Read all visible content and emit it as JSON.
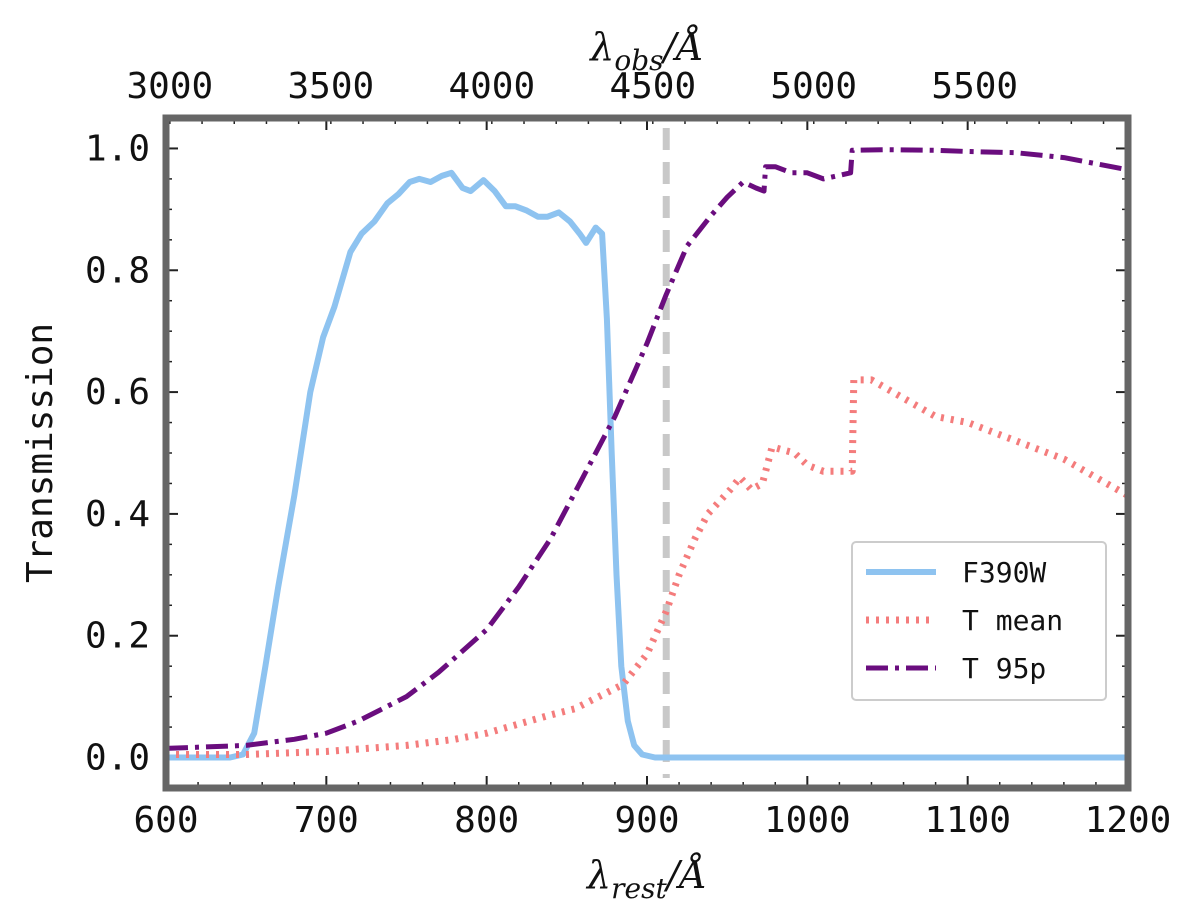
{
  "chart_data": {
    "type": "line",
    "xlabel_bottom": {
      "base": "λ",
      "sub": "rest",
      "unit": "/Å"
    },
    "xlabel_top": {
      "base": "λ",
      "sub": "obs",
      "unit": "/Å"
    },
    "ylabel": "Transmission",
    "xlim": [
      600,
      1200
    ],
    "ylim": [
      -0.05,
      1.05
    ],
    "redshift_factor": 4.98,
    "x_ticks": [
      600,
      700,
      800,
      900,
      1000,
      1100,
      1200
    ],
    "x_tick_labels": [
      "600",
      "700",
      "800",
      "900",
      "1000",
      "1100",
      "1200"
    ],
    "top_ticks_obs": [
      3000,
      3500,
      4000,
      4500,
      5000,
      5500
    ],
    "top_tick_labels": [
      "3000",
      "3500",
      "4000",
      "4500",
      "5000",
      "5500"
    ],
    "y_ticks": [
      0.0,
      0.2,
      0.4,
      0.6,
      0.8,
      1.0
    ],
    "y_tick_labels": [
      "0.0",
      "0.2",
      "0.4",
      "0.6",
      "0.8",
      "1.0"
    ],
    "vline": {
      "x": 912,
      "color": "#c8c8c8"
    },
    "legend_position": "lower-right",
    "series": [
      {
        "name": "F390W",
        "style": "solid",
        "color": "#8ec3f0",
        "x": [
          600,
          640,
          648,
          655,
          662,
          670,
          680,
          690,
          698,
          705,
          715,
          722,
          730,
          738,
          745,
          752,
          758,
          765,
          772,
          778,
          785,
          790,
          798,
          805,
          812,
          818,
          825,
          832,
          838,
          845,
          852,
          858,
          862,
          868,
          872,
          875,
          878,
          881,
          884,
          888,
          892,
          897,
          905,
          920,
          1200
        ],
        "values": [
          0.0,
          0.0,
          0.005,
          0.04,
          0.15,
          0.28,
          0.43,
          0.6,
          0.69,
          0.74,
          0.83,
          0.86,
          0.88,
          0.91,
          0.925,
          0.945,
          0.95,
          0.945,
          0.955,
          0.96,
          0.935,
          0.93,
          0.948,
          0.93,
          0.905,
          0.905,
          0.898,
          0.888,
          0.888,
          0.895,
          0.88,
          0.86,
          0.845,
          0.87,
          0.86,
          0.72,
          0.5,
          0.3,
          0.15,
          0.06,
          0.02,
          0.005,
          0.0,
          0.0,
          0.0
        ]
      },
      {
        "name": "T mean",
        "style": "dotted",
        "color": "#f47c7c",
        "x": [
          600,
          650,
          700,
          750,
          780,
          800,
          820,
          840,
          855,
          870,
          885,
          900,
          912,
          920,
          930,
          938,
          945,
          952,
          958,
          965,
          972,
          978,
          985,
          992,
          1000,
          1010,
          1020,
          1028,
          1029,
          1040,
          1060,
          1080,
          1100,
          1120,
          1140,
          1160,
          1180,
          1200
        ],
        "values": [
          0.005,
          0.005,
          0.01,
          0.02,
          0.03,
          0.04,
          0.055,
          0.07,
          0.08,
          0.1,
          0.12,
          0.17,
          0.24,
          0.3,
          0.36,
          0.4,
          0.42,
          0.44,
          0.46,
          0.44,
          0.45,
          0.51,
          0.505,
          0.5,
          0.48,
          0.47,
          0.47,
          0.47,
          0.62,
          0.62,
          0.59,
          0.56,
          0.55,
          0.53,
          0.51,
          0.49,
          0.46,
          0.43
        ]
      },
      {
        "name": "T 95p",
        "style": "dashdot",
        "color": "#6a0d7e",
        "x": [
          600,
          650,
          680,
          700,
          720,
          750,
          770,
          800,
          820,
          840,
          860,
          880,
          900,
          912,
          925,
          940,
          950,
          960,
          968,
          973,
          974,
          980,
          990,
          1000,
          1010,
          1027,
          1028,
          1050,
          1080,
          1100,
          1130,
          1160,
          1200
        ],
        "values": [
          0.015,
          0.02,
          0.03,
          0.04,
          0.06,
          0.1,
          0.14,
          0.21,
          0.28,
          0.36,
          0.46,
          0.56,
          0.68,
          0.76,
          0.84,
          0.89,
          0.92,
          0.945,
          0.935,
          0.93,
          0.97,
          0.97,
          0.96,
          0.96,
          0.95,
          0.96,
          0.997,
          0.998,
          0.997,
          0.995,
          0.993,
          0.985,
          0.965
        ]
      }
    ]
  }
}
